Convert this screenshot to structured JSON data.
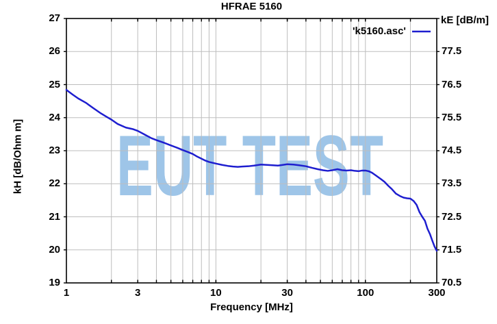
{
  "title": "HFRAE 5160",
  "legend": {
    "label": "'k5160.asc'"
  },
  "watermark": {
    "text": "EUT TEST",
    "color": "#9ec5e8"
  },
  "colors": {
    "curve": "#1e1ecf",
    "grid": "#bdbdbd",
    "border": "#000000",
    "background": "#ffffff"
  },
  "chart_data": {
    "type": "line",
    "title": "HFRAE 5160",
    "xlabel": "Frequency [MHz]",
    "x_scale": "log",
    "xlim": [
      1,
      300
    ],
    "x_ticks": [
      1,
      3,
      10,
      30,
      100,
      300
    ],
    "ylabel_left": "kH [dB/Ohm m]",
    "ylim_left": [
      19,
      27
    ],
    "y_ticks_left": [
      27,
      26,
      25,
      24,
      23,
      22,
      21,
      20,
      19
    ],
    "ylabel_right": "kE [dB/m]",
    "ylim_right": [
      70.5,
      78.5
    ],
    "y_ticks_right": [
      77.5,
      76.5,
      75.5,
      74.5,
      73.5,
      72.5,
      71.5,
      70.5
    ],
    "grid": true,
    "legend_position": "top-right-inside",
    "series": [
      {
        "name": "'k5160.asc'",
        "color": "#1e1ecf",
        "axis": "left",
        "points": [
          [
            1.0,
            24.84
          ],
          [
            1.1,
            24.7
          ],
          [
            1.2,
            24.58
          ],
          [
            1.35,
            24.45
          ],
          [
            1.5,
            24.3
          ],
          [
            1.7,
            24.13
          ],
          [
            1.85,
            24.03
          ],
          [
            2.0,
            23.94
          ],
          [
            2.2,
            23.81
          ],
          [
            2.5,
            23.7
          ],
          [
            2.8,
            23.65
          ],
          [
            3.0,
            23.6
          ],
          [
            3.3,
            23.5
          ],
          [
            3.7,
            23.38
          ],
          [
            4.0,
            23.32
          ],
          [
            4.5,
            23.24
          ],
          [
            5.0,
            23.16
          ],
          [
            5.5,
            23.09
          ],
          [
            6.0,
            23.02
          ],
          [
            6.5,
            22.96
          ],
          [
            7.0,
            22.9
          ],
          [
            7.5,
            22.82
          ],
          [
            8.0,
            22.76
          ],
          [
            8.5,
            22.7
          ],
          [
            9.0,
            22.66
          ],
          [
            10,
            22.61
          ],
          [
            11,
            22.57
          ],
          [
            12,
            22.54
          ],
          [
            13,
            22.52
          ],
          [
            14,
            22.51
          ],
          [
            15,
            22.52
          ],
          [
            16.5,
            22.53
          ],
          [
            18,
            22.55
          ],
          [
            20,
            22.58
          ],
          [
            22,
            22.57
          ],
          [
            24,
            22.56
          ],
          [
            26,
            22.55
          ],
          [
            28,
            22.57
          ],
          [
            30,
            22.59
          ],
          [
            33,
            22.58
          ],
          [
            36,
            22.56
          ],
          [
            40,
            22.53
          ],
          [
            44,
            22.48
          ],
          [
            48,
            22.44
          ],
          [
            52,
            22.41
          ],
          [
            56,
            22.39
          ],
          [
            60,
            22.41
          ],
          [
            65,
            22.44
          ],
          [
            70,
            22.41
          ],
          [
            75,
            22.4
          ],
          [
            80,
            22.41
          ],
          [
            85,
            22.39
          ],
          [
            90,
            22.38
          ],
          [
            95,
            22.4
          ],
          [
            100,
            22.4
          ],
          [
            105,
            22.38
          ],
          [
            110,
            22.34
          ],
          [
            115,
            22.28
          ],
          [
            120,
            22.22
          ],
          [
            127,
            22.14
          ],
          [
            134,
            22.06
          ],
          [
            142,
            21.94
          ],
          [
            150,
            21.84
          ],
          [
            160,
            21.7
          ],
          [
            170,
            21.63
          ],
          [
            180,
            21.58
          ],
          [
            190,
            21.56
          ],
          [
            200,
            21.55
          ],
          [
            210,
            21.48
          ],
          [
            220,
            21.36
          ],
          [
            230,
            21.14
          ],
          [
            240,
            21.0
          ],
          [
            250,
            20.88
          ],
          [
            260,
            20.64
          ],
          [
            270,
            20.48
          ],
          [
            280,
            20.28
          ],
          [
            290,
            20.1
          ],
          [
            300,
            19.97
          ]
        ]
      }
    ]
  }
}
